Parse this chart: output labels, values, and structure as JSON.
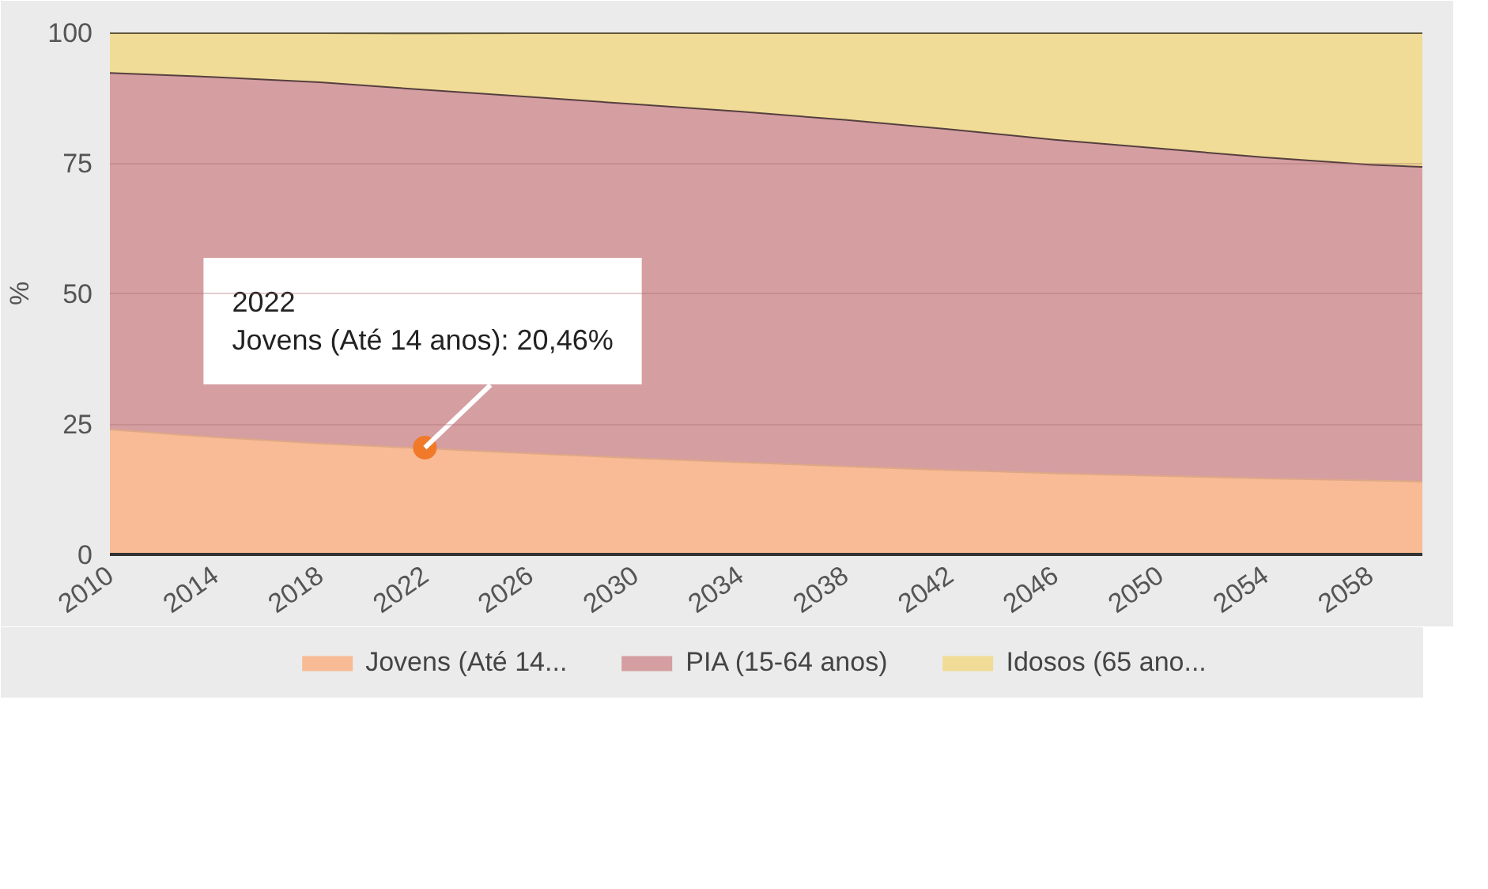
{
  "chart_data": {
    "type": "area",
    "stacked": true,
    "ylabel": "%",
    "x": [
      2010,
      2014,
      2018,
      2022,
      2026,
      2030,
      2034,
      2038,
      2042,
      2046,
      2050,
      2054,
      2058,
      2060
    ],
    "series": [
      {
        "name": "Jovens (Até 14...",
        "color": "#f8bb95",
        "values": [
          24.1,
          22.6,
          21.4,
          20.46,
          19.5,
          18.6,
          17.8,
          17.0,
          16.3,
          15.7,
          15.2,
          14.7,
          14.3,
          14.1
        ]
      },
      {
        "name": "PIA (15-64 anos)",
        "color": "#d59ea1",
        "values": [
          68.3,
          69.0,
          69.2,
          68.7,
          68.3,
          67.8,
          67.2,
          66.4,
          65.3,
          63.9,
          62.7,
          61.5,
          60.5,
          60.3
        ]
      },
      {
        "name": "Idosos (65 ano...",
        "color": "#f0dc96",
        "values": [
          7.6,
          8.4,
          9.4,
          10.8,
          12.2,
          13.6,
          15.0,
          16.6,
          18.4,
          20.4,
          22.1,
          23.8,
          25.2,
          25.6
        ]
      }
    ],
    "xlim": [
      2010,
      2060
    ],
    "xticks": [
      2010,
      2014,
      2018,
      2022,
      2026,
      2030,
      2034,
      2038,
      2042,
      2046,
      2050,
      2054,
      2058
    ],
    "ylim": [
      0,
      100
    ],
    "yticks": [
      0,
      25,
      50,
      75,
      100
    ],
    "grid": "y",
    "legend": "bottom",
    "marker": "none",
    "line_style": "solid",
    "annotations": [
      {
        "text": "2022\nJovens (Até 14 anos): 20,46%",
        "x": 2022,
        "y": 20.46
      }
    ]
  }
}
